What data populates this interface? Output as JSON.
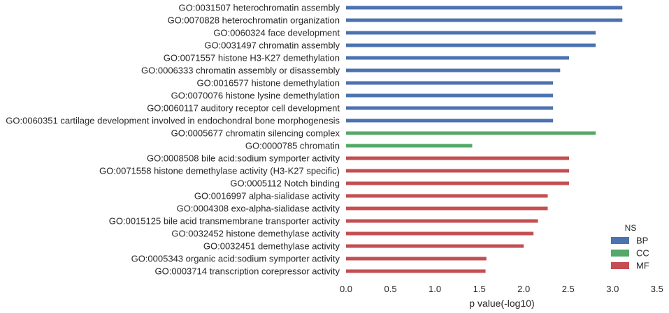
{
  "chart_data": {
    "type": "bar",
    "orientation": "horizontal",
    "xlabel": "p value(-log10)",
    "ylabel": "",
    "xlim": [
      0,
      3.5
    ],
    "xticks": [
      "0.0",
      "0.5",
      "1.0",
      "1.5",
      "2.0",
      "2.5",
      "3.0",
      "3.5"
    ],
    "grid": false,
    "legend": {
      "title": "NS",
      "position": "bottom-right",
      "entries": [
        {
          "name": "BP",
          "color": "#4C72B0"
        },
        {
          "name": "CC",
          "color": "#55A868"
        },
        {
          "name": "MF",
          "color": "#C44E52"
        }
      ]
    },
    "categories": [
      "GO:0031507 heterochromatin assembly",
      "GO:0070828 heterochromatin organization",
      "GO:0060324 face development",
      "GO:0031497 chromatin assembly",
      "GO:0071557 histone H3-K27 demethylation",
      "GO:0006333 chromatin assembly or disassembly",
      "GO:0016577 histone demethylation",
      "GO:0070076 histone lysine demethylation",
      "GO:0060117 auditory receptor cell development",
      "GO:0060351 cartilage development involved in endochondral bone morphogenesis",
      "GO:0005677 chromatin silencing complex",
      "GO:0000785 chromatin",
      "GO:0008508 bile acid:sodium symporter activity",
      "GO:0071558 histone demethylase activity (H3-K27 specific)",
      "GO:0005112 Notch binding",
      "GO:0016997 alpha-sialidase activity",
      "GO:0004308 exo-alpha-sialidase activity",
      "GO:0015125 bile acid transmembrane transporter activity",
      "GO:0032452 histone demethylase activity",
      "GO:0032451 demethylase activity",
      "GO:0005343 organic acid:sodium symporter activity",
      "GO:0003714 transcription corepressor activity"
    ],
    "ns": [
      "BP",
      "BP",
      "BP",
      "BP",
      "BP",
      "BP",
      "BP",
      "BP",
      "BP",
      "BP",
      "CC",
      "CC",
      "MF",
      "MF",
      "MF",
      "MF",
      "MF",
      "MF",
      "MF",
      "MF",
      "MF",
      "MF"
    ],
    "values": [
      3.11,
      3.11,
      2.81,
      2.81,
      2.51,
      2.41,
      2.33,
      2.33,
      2.33,
      2.33,
      2.81,
      1.42,
      2.51,
      2.51,
      2.51,
      2.27,
      2.27,
      2.16,
      2.11,
      2.0,
      1.58,
      1.57
    ]
  }
}
